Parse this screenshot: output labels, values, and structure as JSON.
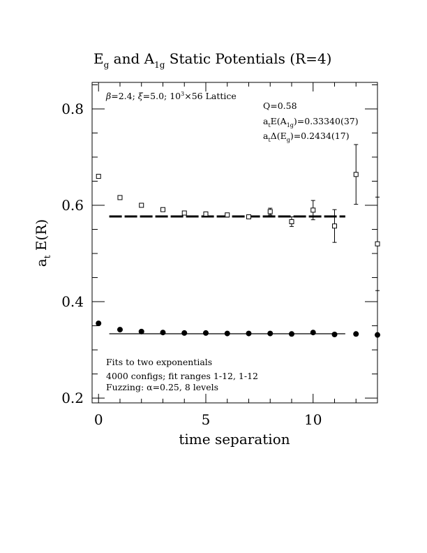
{
  "chart_data": {
    "type": "scatter",
    "title_parts": {
      "a": "E",
      "a_sub": "g",
      "b": " and A",
      "b_sub": "1g",
      "c": " Static Potentials (R=4)"
    },
    "xlabel": "time separation",
    "ylabel_parts": {
      "a": "a",
      "sub": "t",
      "b": " E(R)"
    },
    "xlim": [
      -0.3,
      13.0
    ],
    "ylim": [
      0.19,
      0.855
    ],
    "x_ticks": [
      0,
      5,
      10
    ],
    "x_tick_labels": [
      "0",
      "5",
      "10"
    ],
    "y_ticks": [
      0.2,
      0.4,
      0.6,
      0.8
    ],
    "y_tick_labels": [
      "0.2",
      "0.4",
      "0.6",
      "0.8"
    ],
    "x_minor_step": 1,
    "y_minor_step": 0.05,
    "series": [
      {
        "marker": "open-square",
        "x": [
          0,
          1,
          2,
          3,
          4,
          5,
          6,
          7,
          8,
          9,
          10,
          11,
          12,
          13
        ],
        "y": [
          0.66,
          0.616,
          0.6,
          0.591,
          0.584,
          0.582,
          0.58,
          0.576,
          0.587,
          0.566,
          0.59,
          0.557,
          0.664,
          0.52
        ],
        "err": [
          0.002,
          0.002,
          0.002,
          0.003,
          0.003,
          0.003,
          0.003,
          0.003,
          0.007,
          0.01,
          0.02,
          0.034,
          0.062,
          0.097
        ]
      },
      {
        "marker": "filled-circle",
        "x": [
          0,
          1,
          2,
          3,
          4,
          5,
          6,
          7,
          8,
          9,
          10,
          11,
          12,
          13
        ],
        "y": [
          0.355,
          0.342,
          0.338,
          0.336,
          0.335,
          0.335,
          0.334,
          0.334,
          0.334,
          0.333,
          0.336,
          0.332,
          0.333,
          0.331
        ],
        "err": [
          0,
          0,
          0,
          0,
          0,
          0,
          0,
          0,
          0,
          0,
          0,
          0,
          0,
          0
        ]
      }
    ],
    "fit_lines": [
      {
        "style": "dashed",
        "x_start": 0.5,
        "x_end": 11.5,
        "y": 0.5768
      },
      {
        "style": "solid",
        "x_start": 0.5,
        "x_end": 11.5,
        "y": 0.3334
      }
    ],
    "annotations": {
      "lattice": {
        "beta": "β",
        "t1": "=2.4; ",
        "xi": "ξ",
        "t2": "=5.0; 10",
        "sup": "3",
        "t3": "×56 Lattice"
      },
      "q": "Q=0.58",
      "a1g": {
        "a": "a",
        "a_sub": "t",
        "b": "E(A",
        "b_sub": "1g",
        "c": ")=0.33340(37)"
      },
      "eg": {
        "a": "a",
        "a_sub": "t",
        "b": "Δ(E",
        "b_sub": "g",
        "c": ")=0.2434(17)"
      },
      "fits": "Fits to two exponentials",
      "configs": "4000 configs; fit ranges 1-12, 1-12",
      "fuzzing": "Fuzzing: α=0.25, 8 levels"
    }
  }
}
